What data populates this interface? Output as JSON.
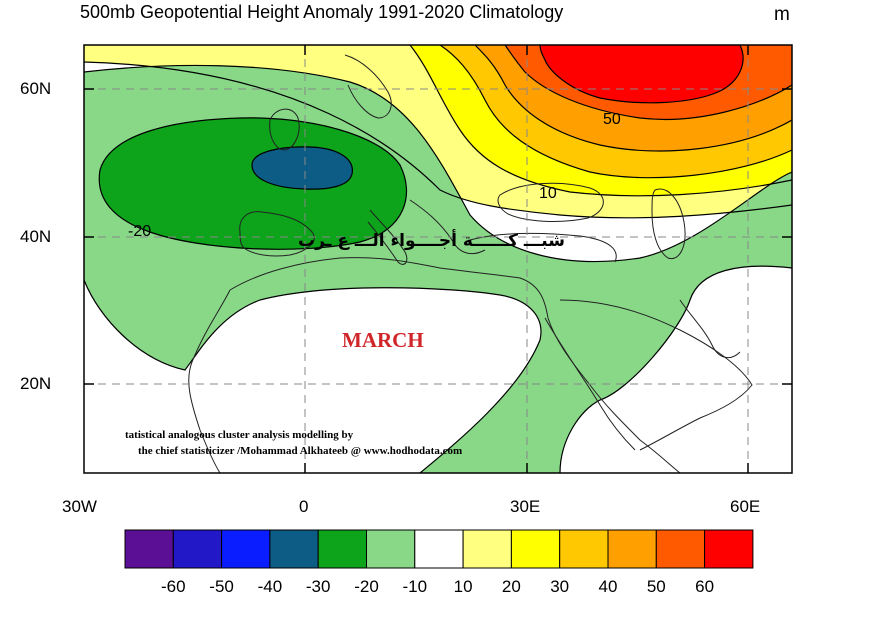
{
  "title": "500mb Geopotential Height Anomaly  1991-2020 Climatology",
  "unit": "m",
  "lat_labels": [
    "60N",
    "40N",
    "20N"
  ],
  "lon_labels": [
    "30W",
    "0",
    "30E",
    "60E"
  ],
  "contour_labels": [
    "50",
    "10",
    "-20"
  ],
  "overlay_arabic": "شبـــ كــــــة أجــــواء الـــ ع ـرب",
  "month": "MARCH",
  "credit_line1": "tatistical analogous cluster analysis modelling by",
  "credit_line2": "the chief statisticizer /Mohammad Alkhateeb @ www.hodhodata.com",
  "colorbar": {
    "colors": [
      "#5a0f94",
      "#2318c8",
      "#0a1dff",
      "#0d5c86",
      "#0da31a",
      "#88d888",
      "#ffffff",
      "#ffff80",
      "#ffff00",
      "#ffc800",
      "#ffa000",
      "#ff5a00",
      "#ff0000"
    ],
    "labels": [
      "-60",
      "-50",
      "-40",
      "-30",
      "-20",
      "-10",
      "10",
      "20",
      "30",
      "40",
      "50",
      "60"
    ]
  },
  "map_colors": {
    "light_green": "#88d888",
    "green": "#0da31a",
    "teal": "#0d5c86",
    "yellow_light": "#ffff80",
    "yellow": "#ffff00",
    "orange_light": "#ffc800",
    "orange": "#ffa000",
    "orange_dark": "#ff5a00",
    "red": "#ff0000"
  }
}
